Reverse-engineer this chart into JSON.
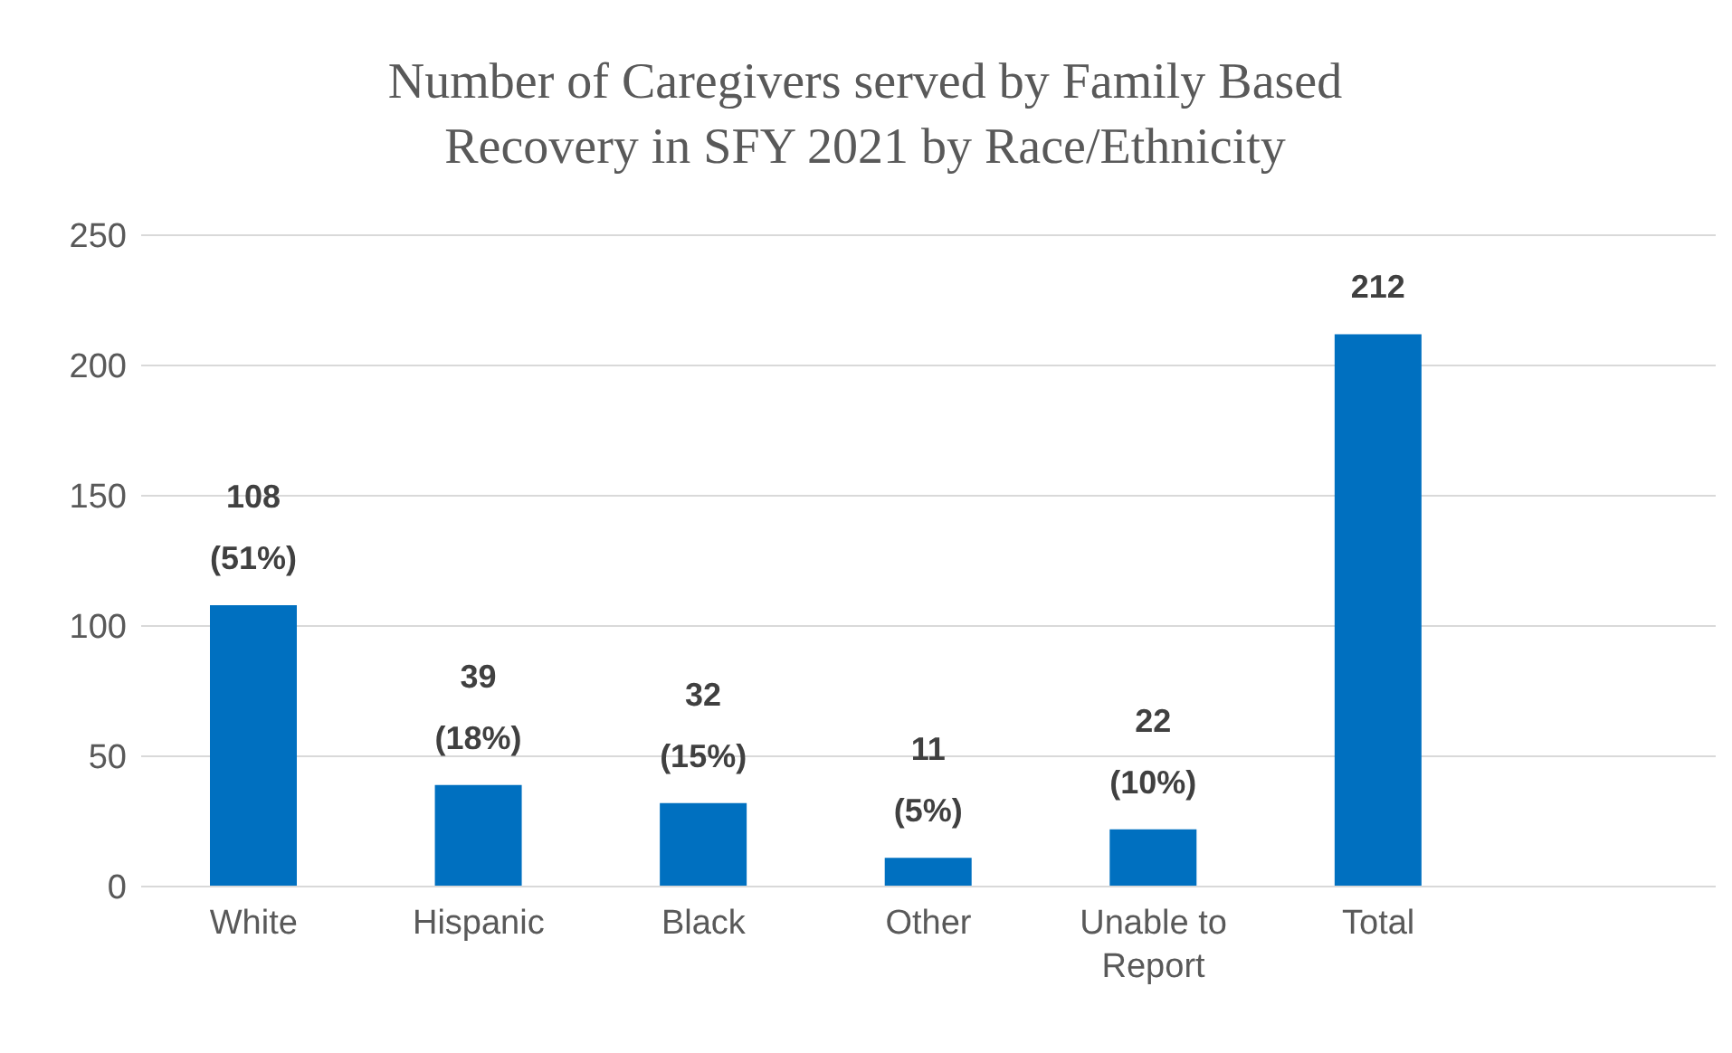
{
  "chart_data": {
    "type": "bar",
    "title": "Number of Caregivers served by Family Based Recovery in SFY 2021 by Race/Ethnicity",
    "categories": [
      "White",
      "Hispanic",
      "Black",
      "Other",
      "Unable to Report",
      "Total",
      null
    ],
    "values": [
      108,
      39,
      32,
      11,
      22,
      212,
      null
    ],
    "color": "#0070c0",
    "value_labels": [
      "108 (51%)",
      "39 (18%)",
      "32 (15%)",
      "11 (5%)",
      "22 (10%)",
      "212",
      null
    ],
    "ylim": [
      0,
      250
    ],
    "yticks": [
      0,
      50,
      100,
      150,
      200,
      250
    ],
    "grid": "y"
  }
}
